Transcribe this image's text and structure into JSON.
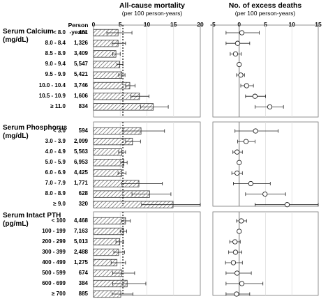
{
  "left_header": {
    "title": "All-cause mortality",
    "subtitle": "(per 100 person-years)"
  },
  "right_header": {
    "title": "No. of excess deaths",
    "subtitle": "(per 100 person-years)"
  },
  "person_years_header": "Person\n-years",
  "chart_data": {
    "type": "bar",
    "left": {
      "title": "All-cause mortality",
      "subtitle": "(per 100 person-years)",
      "xlim": [
        0,
        20
      ],
      "ticks": [
        0,
        5,
        10,
        15,
        20
      ],
      "reference_line": 5.5,
      "bar_fill": "#d9d9d9",
      "bar_hatch": "diagonal"
    },
    "right": {
      "title": "No. of excess deaths",
      "subtitle": "(per 100 person-years)",
      "type": "forest",
      "xlim": [
        -5,
        15
      ],
      "ticks": [
        -5,
        0,
        5,
        10,
        15
      ],
      "reference_line": 0
    },
    "sections": [
      {
        "title": "Serum Calcium\n(mg/dL)",
        "rows": [
          {
            "category": "< 8.0",
            "person_years": "461",
            "mortality": 4.6,
            "mortality_ci": [
              2.5,
              7.2
            ],
            "excess": 0.5,
            "excess_ci": [
              -2.5,
              3.8
            ]
          },
          {
            "category": "8.0 - 8.4",
            "person_years": "1,326",
            "mortality": 4.6,
            "mortality_ci": [
              3.5,
              6.0
            ],
            "excess": -0.3,
            "excess_ci": [
              -2.5,
              2.0
            ]
          },
          {
            "category": "8.5 - 8.9",
            "person_years": "3,409",
            "mortality": 4.2,
            "mortality_ci": [
              3.6,
              5.0
            ],
            "excess": -0.7,
            "excess_ci": [
              -1.7,
              0.4
            ]
          },
          {
            "category": "9.0 - 9.4",
            "person_years": "5,547",
            "mortality": 4.9,
            "mortality_ci": [
              4.4,
              5.5
            ],
            "excess": 0.0,
            "excess_ci": [
              0.0,
              0.0
            ]
          },
          {
            "category": "9.5 - 9.9",
            "person_years": "5,421",
            "mortality": 5.3,
            "mortality_ci": [
              4.7,
              5.9
            ],
            "excess": 0.3,
            "excess_ci": [
              -0.5,
              1.0
            ]
          },
          {
            "category": "10.0 - 10.4",
            "person_years": "3,746",
            "mortality": 6.8,
            "mortality_ci": [
              6.0,
              7.8
            ],
            "excess": 1.4,
            "excess_ci": [
              0.3,
              2.7
            ]
          },
          {
            "category": "10.5 - 10.9",
            "person_years": "1,606",
            "mortality": 8.6,
            "mortality_ci": [
              7.0,
              10.4
            ],
            "excess": 3.0,
            "excess_ci": [
              1.2,
              5.0
            ]
          },
          {
            "category": "≥ 11.0",
            "person_years": "834",
            "mortality": 11.2,
            "mortality_ci": [
              8.8,
              14.0
            ],
            "excess": 5.8,
            "excess_ci": [
              3.0,
              8.4
            ]
          }
        ]
      },
      {
        "title": "Serum Phosphorus\n(mg/dL)",
        "rows": [
          {
            "category": "< 3.0",
            "person_years": "594",
            "mortality": 8.9,
            "mortality_ci": [
              5.5,
              13.3
            ],
            "excess": 3.1,
            "excess_ci": [
              -0.8,
              7.4
            ]
          },
          {
            "category": "3.0 - 3.9",
            "person_years": "2,099",
            "mortality": 7.3,
            "mortality_ci": [
              6.0,
              8.8
            ],
            "excess": 1.3,
            "excess_ci": [
              -0.3,
              3.0
            ]
          },
          {
            "category": "4.0 - 4.9",
            "person_years": "5,563",
            "mortality": 5.3,
            "mortality_ci": [
              4.7,
              6.0
            ],
            "excess": -0.4,
            "excess_ci": [
              -1.2,
              0.6
            ]
          },
          {
            "category": "5.0 - 5.9",
            "person_years": "6,953",
            "mortality": 5.7,
            "mortality_ci": [
              5.1,
              6.3
            ],
            "excess": 0.0,
            "excess_ci": [
              0.0,
              0.0
            ]
          },
          {
            "category": "6.0 - 6.9",
            "person_years": "4,425",
            "mortality": 5.3,
            "mortality_ci": [
              4.6,
              6.1
            ],
            "excess": -0.4,
            "excess_ci": [
              -1.4,
              0.6
            ]
          },
          {
            "category": "7.0 - 7.9",
            "person_years": "1,771",
            "mortality": 8.5,
            "mortality_ci": [
              5.3,
              12.9
            ],
            "excess": 2.2,
            "excess_ci": [
              -1.1,
              5.9
            ]
          },
          {
            "category": "8.0 - 8.9",
            "person_years": "628",
            "mortality": 10.5,
            "mortality_ci": [
              7.2,
              14.5
            ],
            "excess": 4.9,
            "excess_ci": [
              1.2,
              8.8
            ]
          },
          {
            "category": "≥ 9.0",
            "person_years": "320",
            "mortality": 14.9,
            "mortality_ci": [
              9.0,
              20.0
            ],
            "excess": 9.1,
            "excess_ci": [
              3.0,
              15.0
            ]
          }
        ]
      },
      {
        "title": "Serum Intact PTH\n(pg/mL)",
        "rows": [
          {
            "category": "< 100",
            "person_years": "4,468",
            "mortality": 6.0,
            "mortality_ci": [
              5.2,
              6.9
            ],
            "excess": 0.4,
            "excess_ci": [
              -0.5,
              1.4
            ]
          },
          {
            "category": "100 - 199",
            "person_years": "7,163",
            "mortality": 5.6,
            "mortality_ci": [
              5.0,
              6.2
            ],
            "excess": 0.0,
            "excess_ci": [
              0.0,
              0.0
            ]
          },
          {
            "category": "200 - 299",
            "person_years": "5,013",
            "mortality": 4.9,
            "mortality_ci": [
              4.2,
              5.6
            ],
            "excess": -0.8,
            "excess_ci": [
              -1.8,
              0.2
            ]
          },
          {
            "category": "300 - 399",
            "person_years": "2,488",
            "mortality": 4.7,
            "mortality_ci": [
              3.8,
              5.8
            ],
            "excess": -0.7,
            "excess_ci": [
              -2.0,
              0.5
            ]
          },
          {
            "category": "400 - 499",
            "person_years": "1,275",
            "mortality": 4.4,
            "mortality_ci": [
              3.3,
              6.0
            ],
            "excess": -1.1,
            "excess_ci": [
              -2.6,
              0.6
            ]
          },
          {
            "category": "500 - 599",
            "person_years": "674",
            "mortality": 5.3,
            "mortality_ci": [
              3.6,
              7.7
            ],
            "excess": -0.4,
            "excess_ci": [
              -2.5,
              2.3
            ]
          },
          {
            "category": "600 - 699",
            "person_years": "384",
            "mortality": 6.3,
            "mortality_ci": [
              3.6,
              9.8
            ],
            "excess": 0.5,
            "excess_ci": [
              -2.5,
              4.5
            ]
          },
          {
            "category": "≥ 700",
            "person_years": "885",
            "mortality": 5.1,
            "mortality_ci": [
              3.5,
              7.4
            ],
            "excess": -0.5,
            "excess_ci": [
              -2.5,
              2.0
            ]
          }
        ]
      }
    ]
  }
}
